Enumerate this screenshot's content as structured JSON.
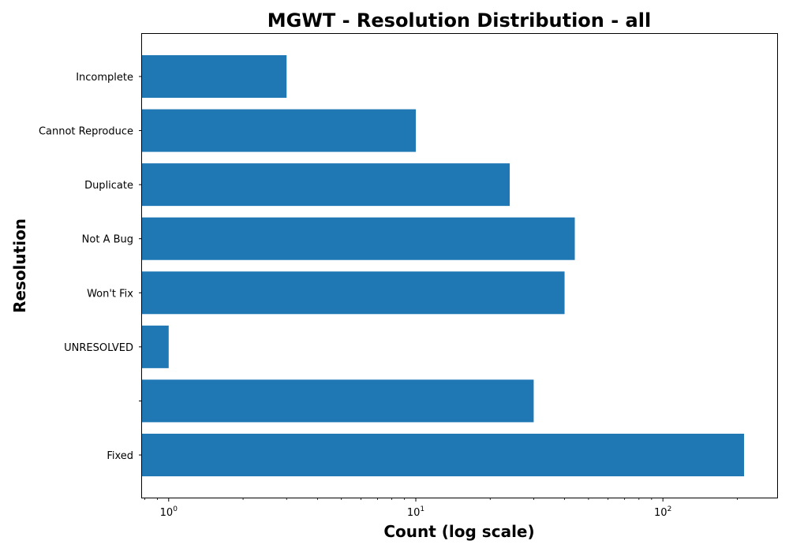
{
  "chart_data": {
    "type": "bar",
    "orientation": "horizontal",
    "title": "MGWT - Resolution Distribution - all",
    "xlabel": "Count (log scale)",
    "ylabel": "Resolution",
    "x_scale": "log",
    "xlim": [
      0.78,
      290
    ],
    "x_ticks": [
      {
        "value": 1,
        "base": "10",
        "exp": "0"
      },
      {
        "value": 10,
        "base": "10",
        "exp": "1"
      },
      {
        "value": 100,
        "base": "10",
        "exp": "2"
      }
    ],
    "categories": [
      "Fixed",
      "",
      "UNRESOLVED",
      "Won't Fix",
      "Not A Bug",
      "Duplicate",
      "Cannot Reproduce",
      "Incomplete"
    ],
    "values": [
      213,
      30,
      1,
      40,
      44,
      24,
      10,
      3
    ],
    "bar_color": "#1f77b4",
    "grid": false,
    "legend": "none"
  }
}
